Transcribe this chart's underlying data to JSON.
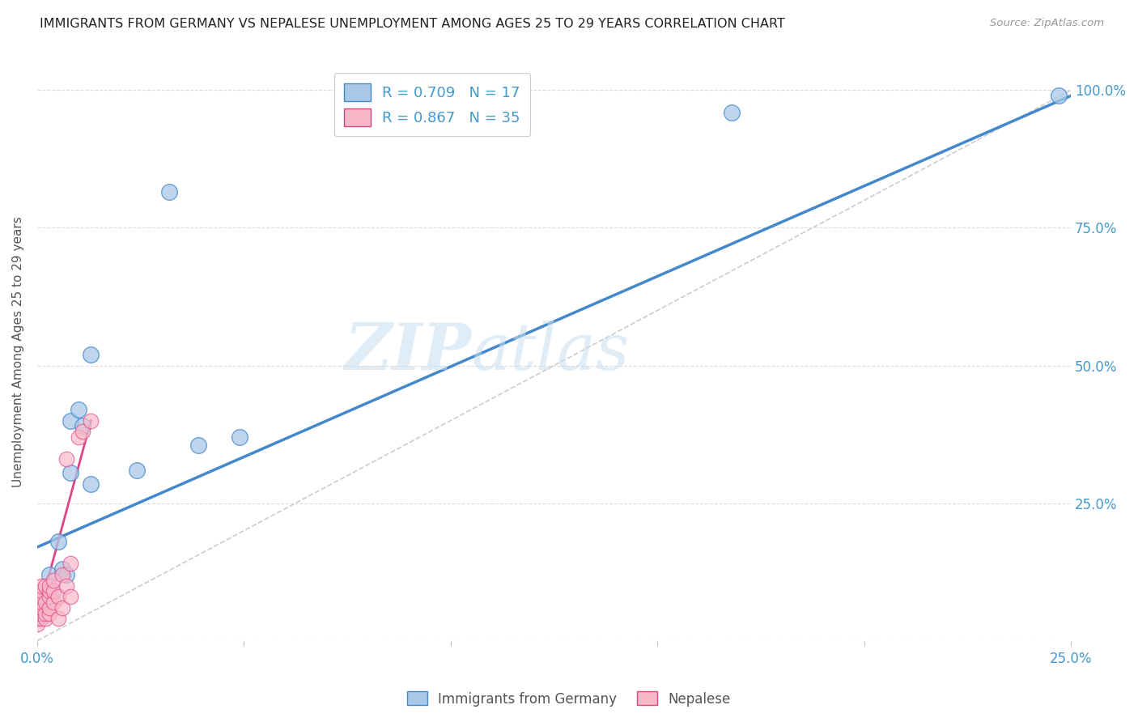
{
  "title": "IMMIGRANTS FROM GERMANY VS NEPALESE UNEMPLOYMENT AMONG AGES 25 TO 29 YEARS CORRELATION CHART",
  "source": "Source: ZipAtlas.com",
  "ylabel": "Unemployment Among Ages 25 to 29 years",
  "xlim": [
    0.0,
    0.25
  ],
  "ylim": [
    0.0,
    1.05
  ],
  "legend_r1": "R = 0.709   N = 17",
  "legend_r2": "R = 0.867   N = 35",
  "color_blue": "#a8c8e8",
  "color_pink": "#f8b8c8",
  "color_blue_line": "#4488cc",
  "color_pink_line": "#dd4488",
  "color_ref_line": "#cccccc",
  "color_axis": "#4499cc",
  "watermark_zip": "ZIP",
  "watermark_atlas": "atlas",
  "blue_scatter_x": [
    0.001,
    0.003,
    0.005,
    0.006,
    0.007,
    0.008,
    0.008,
    0.01,
    0.011,
    0.013,
    0.013,
    0.024,
    0.032,
    0.039,
    0.049,
    0.168,
    0.247
  ],
  "blue_scatter_y": [
    0.085,
    0.12,
    0.18,
    0.13,
    0.12,
    0.305,
    0.4,
    0.42,
    0.39,
    0.285,
    0.52,
    0.31,
    0.815,
    0.355,
    0.37,
    0.96,
    0.99
  ],
  "pink_scatter_x": [
    0.0,
    0.0,
    0.0,
    0.0,
    0.0,
    0.001,
    0.001,
    0.001,
    0.001,
    0.001,
    0.001,
    0.001,
    0.002,
    0.002,
    0.002,
    0.002,
    0.003,
    0.003,
    0.003,
    0.003,
    0.003,
    0.004,
    0.004,
    0.004,
    0.005,
    0.005,
    0.006,
    0.006,
    0.007,
    0.007,
    0.008,
    0.008,
    0.01,
    0.011,
    0.013
  ],
  "pink_scatter_y": [
    0.03,
    0.04,
    0.05,
    0.06,
    0.07,
    0.04,
    0.05,
    0.06,
    0.07,
    0.08,
    0.09,
    0.1,
    0.04,
    0.05,
    0.07,
    0.1,
    0.05,
    0.06,
    0.08,
    0.09,
    0.1,
    0.07,
    0.09,
    0.11,
    0.04,
    0.08,
    0.06,
    0.12,
    0.1,
    0.33,
    0.08,
    0.14,
    0.37,
    0.38,
    0.4
  ],
  "blue_line_x0": 0.0,
  "blue_line_x1": 0.25,
  "blue_line_y0": 0.17,
  "blue_line_y1": 0.99,
  "pink_line_x0": 0.0,
  "pink_line_x1": 0.013,
  "pink_line_y0": 0.04,
  "pink_line_y1": 0.4,
  "ref_line_x0": 0.0,
  "ref_line_x1": 0.25,
  "ref_line_y0": 0.0,
  "ref_line_y1": 1.0,
  "figsize": [
    14.06,
    8.92
  ],
  "dpi": 100
}
